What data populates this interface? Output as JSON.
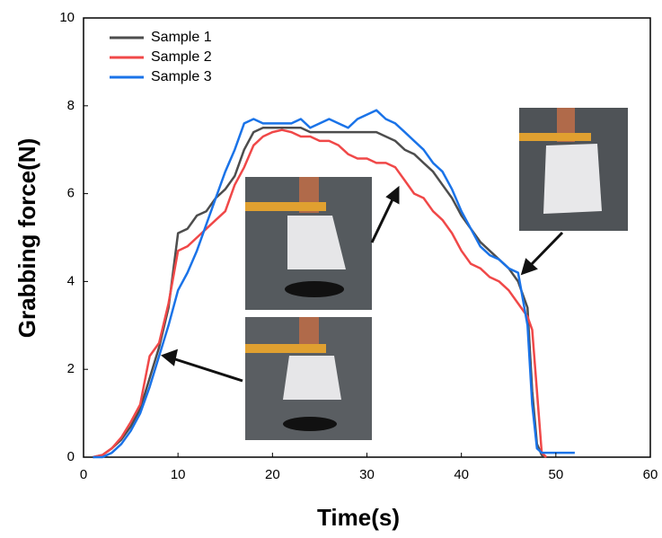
{
  "chart_data": {
    "type": "line",
    "xlabel": "Time(s)",
    "ylabel": "Grabbing force(N)",
    "x": [
      1,
      2,
      3,
      4,
      5,
      6,
      7,
      8,
      9,
      10,
      11,
      12,
      13,
      14,
      15,
      16,
      17,
      18,
      19,
      20,
      21,
      22,
      23,
      24,
      25,
      26,
      27,
      28,
      29,
      30,
      31,
      32,
      33,
      34,
      35,
      36,
      37,
      38,
      39,
      40,
      41,
      42,
      43,
      44,
      45,
      46,
      47,
      47.5,
      48,
      48.5,
      49,
      50,
      51,
      52
    ],
    "series": [
      {
        "name": "Sample 1",
        "color": "#4d4d4d",
        "values": [
          0,
          0.05,
          0.2,
          0.4,
          0.7,
          1.1,
          1.8,
          2.5,
          3.4,
          5.1,
          5.2,
          5.5,
          5.6,
          5.9,
          6.1,
          6.4,
          7.0,
          7.4,
          7.5,
          7.5,
          7.5,
          7.5,
          7.5,
          7.4,
          7.4,
          7.4,
          7.4,
          7.4,
          7.4,
          7.4,
          7.4,
          7.3,
          7.2,
          7.0,
          6.9,
          6.7,
          6.5,
          6.2,
          5.9,
          5.5,
          5.2,
          4.9,
          4.7,
          4.5,
          4.3,
          4.0,
          3.4,
          1.5,
          0.3,
          0.05,
          0,
          null,
          null,
          null
        ]
      },
      {
        "name": "Sample 2",
        "color": "#f04848",
        "values": [
          0,
          0.05,
          0.2,
          0.45,
          0.8,
          1.2,
          2.3,
          2.6,
          3.5,
          4.7,
          4.8,
          5.0,
          5.2,
          5.4,
          5.6,
          6.2,
          6.6,
          7.1,
          7.3,
          7.4,
          7.45,
          7.4,
          7.3,
          7.3,
          7.2,
          7.2,
          7.1,
          6.9,
          6.8,
          6.8,
          6.7,
          6.7,
          6.6,
          6.3,
          6.0,
          5.9,
          5.6,
          5.4,
          5.1,
          4.7,
          4.4,
          4.3,
          4.1,
          4.0,
          3.8,
          3.5,
          3.2,
          2.9,
          1.5,
          0.1,
          0,
          null,
          null,
          null
        ]
      },
      {
        "name": "Sample 3",
        "color": "#1a73e8",
        "values": [
          0,
          0,
          0.1,
          0.3,
          0.6,
          1.0,
          1.6,
          2.3,
          3.0,
          3.8,
          4.2,
          4.7,
          5.3,
          5.9,
          6.5,
          7.0,
          7.6,
          7.7,
          7.6,
          7.6,
          7.6,
          7.6,
          7.7,
          7.5,
          7.6,
          7.7,
          7.6,
          7.5,
          7.7,
          7.8,
          7.9,
          7.7,
          7.6,
          7.4,
          7.2,
          7.0,
          6.7,
          6.5,
          6.1,
          5.6,
          5.2,
          4.8,
          4.6,
          4.5,
          4.3,
          4.2,
          3.0,
          1.2,
          0.2,
          0.1,
          0.1,
          0.1,
          0.1,
          0.1
        ]
      }
    ],
    "xlim": [
      0,
      60
    ],
    "xticks": [
      0,
      10,
      20,
      30,
      40,
      50,
      60
    ],
    "ylim": [
      0,
      10
    ],
    "yticks": [
      0,
      2,
      4,
      6,
      8,
      10
    ],
    "legend": "upper left"
  }
}
